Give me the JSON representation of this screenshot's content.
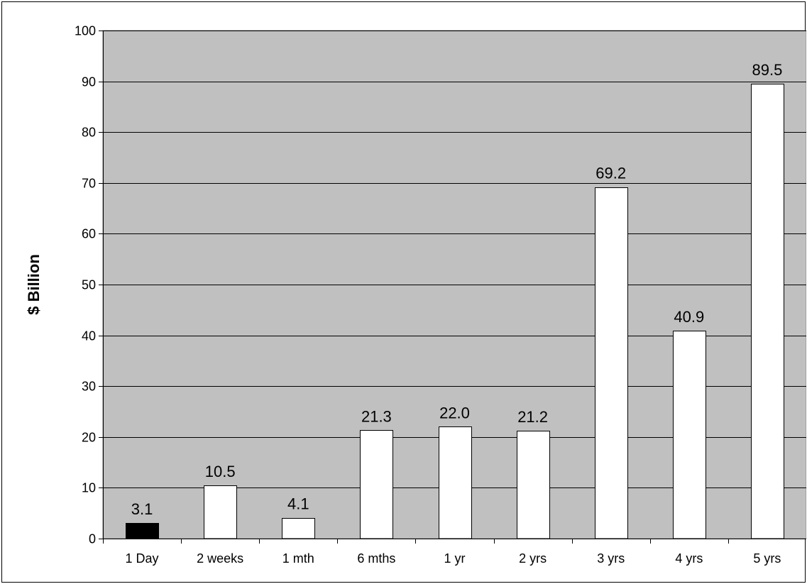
{
  "chart_data": {
    "type": "bar",
    "title": "",
    "xlabel": "",
    "ylabel": "$ Billion",
    "ylim": [
      0,
      100
    ],
    "yticks": [
      0,
      10,
      20,
      30,
      40,
      50,
      60,
      70,
      80,
      90,
      100
    ],
    "grid": true,
    "legend": "none",
    "categories": [
      "1 Day",
      "2 weeks",
      "1 mth",
      "6 mths",
      "1 yr",
      "2 yrs",
      "3 yrs",
      "4 yrs",
      "5 yrs"
    ],
    "values": [
      3.1,
      10.5,
      4.1,
      21.3,
      22.0,
      21.2,
      69.2,
      40.9,
      89.5
    ],
    "data_labels": [
      "3.1",
      "10.5",
      "4.1",
      "21.3",
      "22.0",
      "21.2",
      "69.2",
      "40.9",
      "89.5"
    ],
    "highlight_index": 0,
    "colors": {
      "plot_background": "#c0c0c0",
      "bar_fill": "#ffffff",
      "highlight_fill": "#000000",
      "bar_stroke": "#000000",
      "gridline": "#000000"
    }
  }
}
